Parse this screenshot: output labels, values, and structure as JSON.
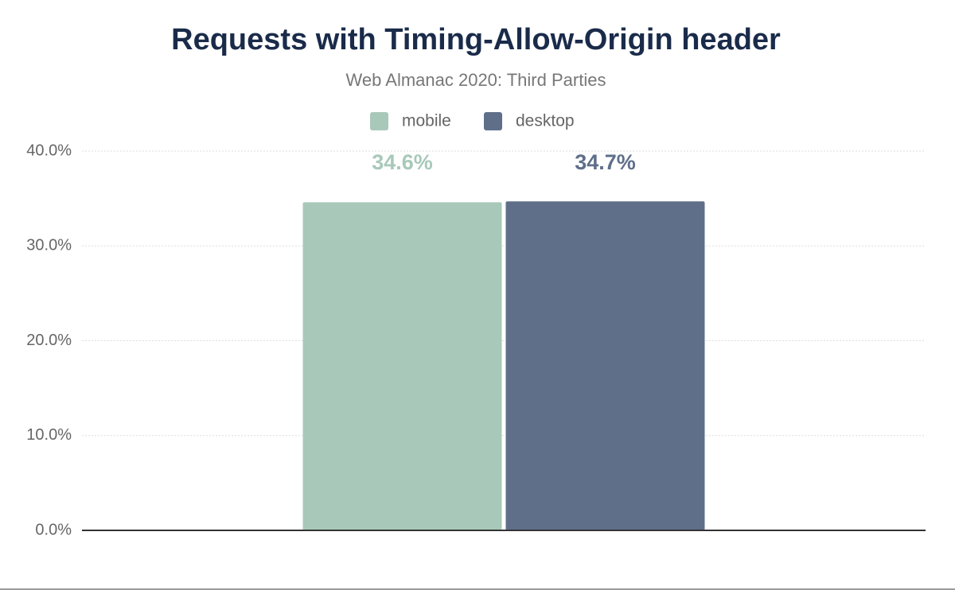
{
  "chart_data": {
    "type": "bar",
    "title": "Requests with Timing-Allow-Origin header",
    "subtitle": "Web Almanac 2020: Third Parties",
    "categories": [
      null
    ],
    "series": [
      {
        "name": "mobile",
        "color": "#a8c9b9",
        "values": [
          34.6
        ],
        "value_labels": [
          "34.6%"
        ]
      },
      {
        "name": "desktop",
        "color": "#5f6f8a",
        "values": [
          34.7
        ],
        "value_labels": [
          "34.7%"
        ]
      }
    ],
    "ylim": [
      0,
      40
    ],
    "yticks": [
      {
        "value": 0,
        "label": "0.0%"
      },
      {
        "value": 10,
        "label": "10.0%"
      },
      {
        "value": 20,
        "label": "20.0%"
      },
      {
        "value": 30,
        "label": "30.0%"
      },
      {
        "value": 40,
        "label": "40.0%"
      }
    ],
    "grid": true
  }
}
